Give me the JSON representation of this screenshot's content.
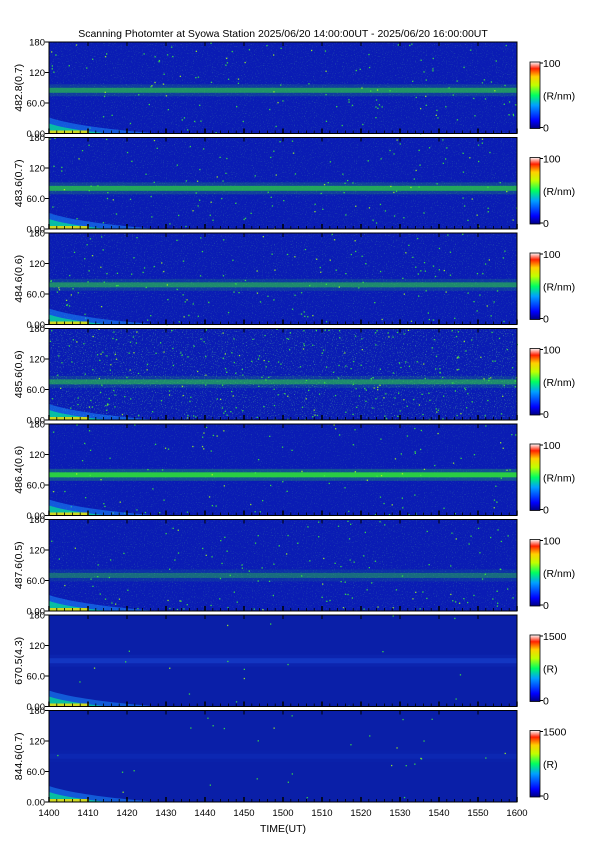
{
  "title": "Scanning Photomter at Syowa Station 2025/06/20 14:00:00UT - 2025/06/20 16:00:00UT",
  "xlabel": "TIME(UT)",
  "x_ticks": [
    "1400",
    "1410",
    "1420",
    "1430",
    "1440",
    "1450",
    "1500",
    "1510",
    "1520",
    "1530",
    "1540",
    "1550",
    "1600"
  ],
  "y_ticks": [
    "0.00",
    "60.0",
    "120",
    "180"
  ],
  "colors": {
    "background": "#0a1cb4",
    "band": "#2edc3a",
    "low": "#00007a",
    "accent": "#ff2200"
  },
  "chart_data": {
    "type": "heatmap",
    "title": "Scanning Photomter at Syowa Station 2025/06/20 14:00:00UT - 2025/06/20 16:00:00UT",
    "xlabel": "TIME(UT)",
    "xlim": [
      "14:00",
      "16:00"
    ],
    "ylim": [
      0,
      180
    ],
    "panels": [
      {
        "label": "482.8(0.7)",
        "colorbar_range": [
          0,
          100
        ],
        "colorbar_unit": "(R/nm)",
        "band_center_deg": 85,
        "band_intensity": 0.55,
        "noise": 0.35
      },
      {
        "label": "483.6(0.7)",
        "colorbar_range": [
          0,
          100
        ],
        "colorbar_unit": "(R/nm)",
        "band_center_deg": 80,
        "band_intensity": 0.65,
        "noise": 0.35
      },
      {
        "label": "484.6(0.6)",
        "colorbar_range": [
          0,
          100
        ],
        "colorbar_unit": "(R/nm)",
        "band_center_deg": 78,
        "band_intensity": 0.5,
        "noise": 0.4
      },
      {
        "label": "485.6(0.6)",
        "colorbar_range": [
          0,
          100
        ],
        "colorbar_unit": "(R/nm)",
        "band_center_deg": 75,
        "band_intensity": 0.5,
        "noise": 0.75
      },
      {
        "label": "486.4(0.6)",
        "colorbar_range": [
          0,
          100
        ],
        "colorbar_unit": "(R/nm)",
        "band_center_deg": 80,
        "band_intensity": 0.9,
        "noise": 0.3
      },
      {
        "label": "487.6(0.5)",
        "colorbar_range": [
          0,
          100
        ],
        "colorbar_unit": "(R/nm)",
        "band_center_deg": 70,
        "band_intensity": 0.35,
        "noise": 0.35
      },
      {
        "label": "670.5(4.3)",
        "colorbar_range": [
          0,
          1500
        ],
        "colorbar_unit": "(R)",
        "band_center_deg": 90,
        "band_intensity": 0.25,
        "noise": 0.05
      },
      {
        "label": "844.6(0.7)",
        "colorbar_range": [
          0,
          1500
        ],
        "colorbar_unit": "(R)",
        "band_center_deg": 90,
        "band_intensity": 0.1,
        "noise": 0.08
      }
    ]
  }
}
